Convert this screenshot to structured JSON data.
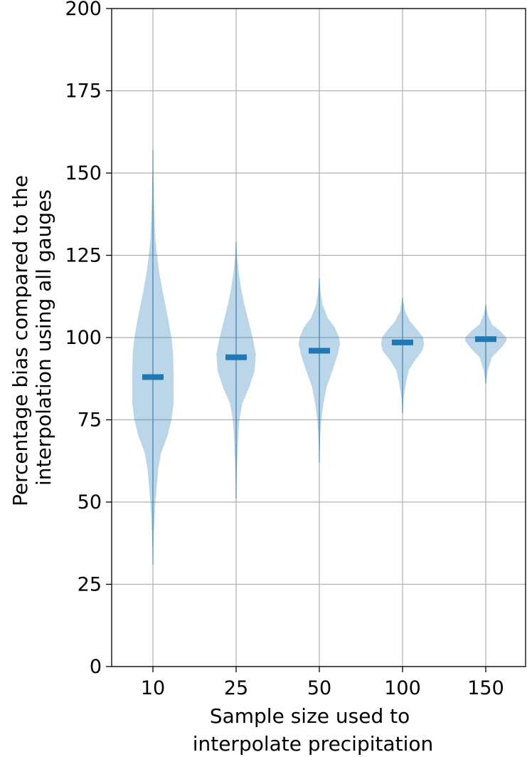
{
  "chart_data": {
    "type": "violin",
    "title": "",
    "xlabel": [
      "Sample size used to",
      "interpolate precipitation"
    ],
    "ylabel": [
      "Percentage bias compared to the",
      "interpolation using all gauges"
    ],
    "ylim": [
      0,
      200
    ],
    "yticks": [
      "0",
      "25",
      "50",
      "75",
      "100",
      "125",
      "150",
      "175",
      "200"
    ],
    "grid": true,
    "legend": "none",
    "fill_color": "#1f77b4",
    "fill_opacity": 0.3,
    "median_color": "#1f77b4",
    "categories": [
      "10",
      "25",
      "50",
      "100",
      "150"
    ],
    "violins": [
      {
        "category": "10",
        "min": 31,
        "max": 157,
        "median": 88,
        "profile": [
          [
            31,
            0
          ],
          [
            40,
            0.02
          ],
          [
            50,
            0.06
          ],
          [
            60,
            0.13
          ],
          [
            65,
            0.2
          ],
          [
            70,
            0.35
          ],
          [
            75,
            0.45
          ],
          [
            80,
            0.5
          ],
          [
            85,
            0.5
          ],
          [
            90,
            0.5
          ],
          [
            95,
            0.49
          ],
          [
            100,
            0.45
          ],
          [
            105,
            0.38
          ],
          [
            110,
            0.3
          ],
          [
            115,
            0.22
          ],
          [
            120,
            0.15
          ],
          [
            125,
            0.1
          ],
          [
            130,
            0.06
          ],
          [
            140,
            0.03
          ],
          [
            150,
            0.01
          ],
          [
            157,
            0
          ]
        ]
      },
      {
        "category": "25",
        "min": 51,
        "max": 129,
        "median": 94,
        "profile": [
          [
            51,
            0
          ],
          [
            60,
            0.02
          ],
          [
            70,
            0.05
          ],
          [
            75,
            0.08
          ],
          [
            80,
            0.15
          ],
          [
            85,
            0.32
          ],
          [
            90,
            0.45
          ],
          [
            95,
            0.48
          ],
          [
            100,
            0.4
          ],
          [
            105,
            0.3
          ],
          [
            110,
            0.2
          ],
          [
            115,
            0.12
          ],
          [
            120,
            0.06
          ],
          [
            125,
            0.02
          ],
          [
            129,
            0
          ]
        ]
      },
      {
        "category": "50",
        "min": 62,
        "max": 118,
        "median": 96,
        "profile": [
          [
            62,
            0
          ],
          [
            70,
            0.02
          ],
          [
            75,
            0.05
          ],
          [
            80,
            0.1
          ],
          [
            85,
            0.18
          ],
          [
            90,
            0.32
          ],
          [
            95,
            0.45
          ],
          [
            98,
            0.5
          ],
          [
            100,
            0.48
          ],
          [
            103,
            0.38
          ],
          [
            106,
            0.2
          ],
          [
            110,
            0.08
          ],
          [
            114,
            0.03
          ],
          [
            118,
            0
          ]
        ]
      },
      {
        "category": "100",
        "min": 77,
        "max": 112,
        "median": 98.5,
        "profile": [
          [
            77,
            0
          ],
          [
            82,
            0.03
          ],
          [
            86,
            0.08
          ],
          [
            90,
            0.15
          ],
          [
            93,
            0.3
          ],
          [
            96,
            0.48
          ],
          [
            98,
            0.52
          ],
          [
            100,
            0.5
          ],
          [
            102,
            0.38
          ],
          [
            105,
            0.18
          ],
          [
            108,
            0.06
          ],
          [
            112,
            0
          ]
        ]
      },
      {
        "category": "150",
        "min": 86,
        "max": 110,
        "median": 99.5,
        "profile": [
          [
            86,
            0
          ],
          [
            90,
            0.05
          ],
          [
            94,
            0.15
          ],
          [
            97,
            0.38
          ],
          [
            99,
            0.5
          ],
          [
            100,
            0.5
          ],
          [
            102,
            0.35
          ],
          [
            104,
            0.15
          ],
          [
            107,
            0.05
          ],
          [
            110,
            0
          ]
        ]
      }
    ]
  }
}
